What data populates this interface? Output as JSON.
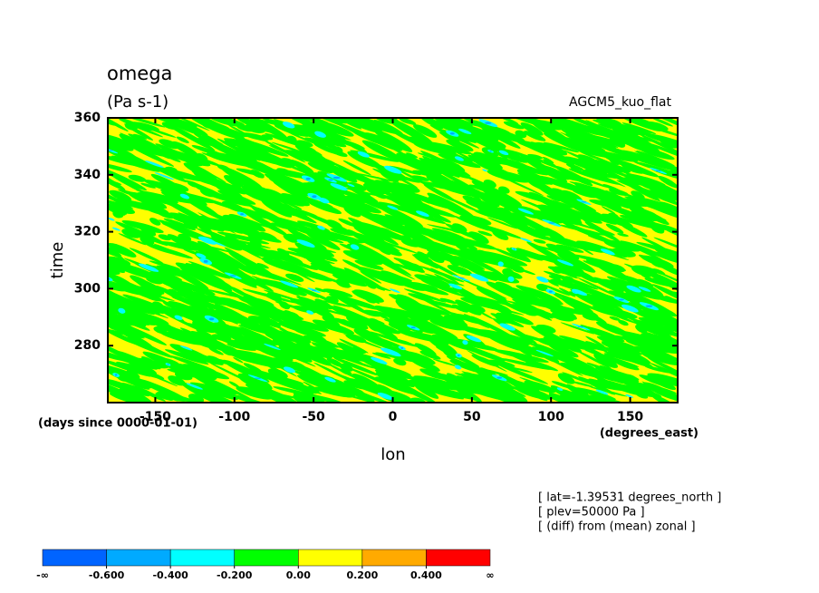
{
  "chart_data": {
    "type": "hovmoller",
    "title": "omega",
    "subtitle": "(Pa s-1)",
    "experiment": "AGCM5_kuo_flat",
    "ylabel": "time",
    "xlabel": "lon",
    "y_units": "(days since 0000-01-01)",
    "x_units": "(degrees_east)",
    "annotations": [
      "[ lat=-1.39531 degrees_north ]",
      "[ plev=50000 Pa ]",
      "[ (diff) from (mean) zonal ]"
    ],
    "xlim": [
      -180,
      180
    ],
    "xticks": [
      -150,
      -100,
      -50,
      0,
      50,
      100,
      150
    ],
    "ylim": [
      260,
      360
    ],
    "yticks": [
      280,
      300,
      320,
      340,
      360
    ],
    "colorbar": {
      "colors": [
        "#0064ff",
        "#00aaff",
        "#00ffff",
        "#00ff00",
        "#ffff00",
        "#ffaa00",
        "#ff0000"
      ],
      "low_label": "-∞",
      "high_label": "∞",
      "ticks": [
        {
          "value": -0.6,
          "label": "-0.600"
        },
        {
          "value": -0.4,
          "label": "-0.400"
        },
        {
          "value": -0.2,
          "label": "-0.200"
        },
        {
          "value": 0,
          "label": "0.00"
        },
        {
          "value": 0.2,
          "label": "0.200"
        },
        {
          "value": 0.4,
          "label": "0.400"
        }
      ]
    }
  }
}
